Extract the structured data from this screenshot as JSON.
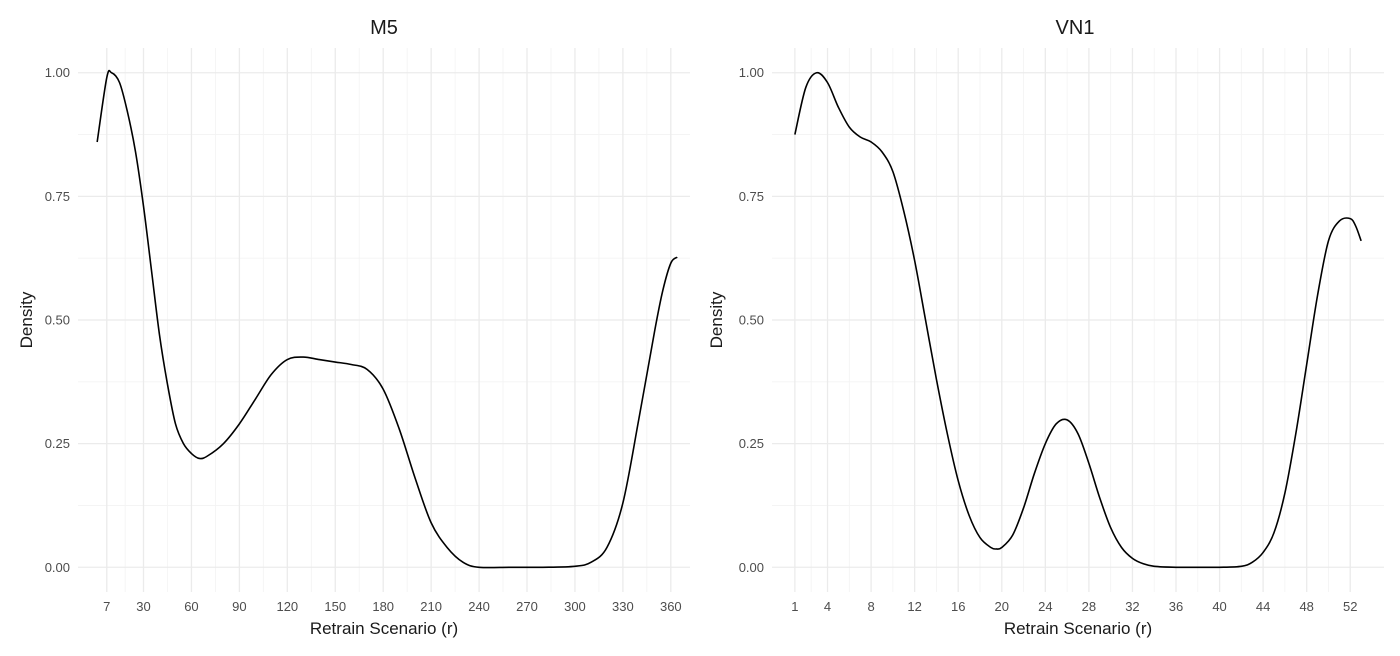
{
  "chart_data": [
    {
      "type": "line",
      "title": "M5",
      "xlabel": "Retrain Scenario (r)",
      "ylabel": "Density",
      "xlim": [
        -11,
        372
      ],
      "ylim": [
        -0.05,
        1.05
      ],
      "x_ticks": [
        7,
        30,
        60,
        90,
        120,
        150,
        180,
        210,
        240,
        270,
        300,
        330,
        360
      ],
      "y_ticks": [
        0.0,
        0.25,
        0.5,
        0.75,
        1.0
      ],
      "y_tick_labels": [
        "0.00",
        "0.25",
        "0.50",
        "0.75",
        "1.00"
      ],
      "grid": true,
      "series": [
        {
          "x": [
            1,
            7,
            10,
            15,
            20,
            25,
            30,
            35,
            40,
            45,
            50,
            55,
            60,
            65,
            70,
            80,
            90,
            100,
            110,
            120,
            130,
            140,
            150,
            160,
            170,
            180,
            190,
            200,
            210,
            220,
            230,
            240,
            260,
            280,
            300,
            310,
            320,
            330,
            340,
            350,
            355,
            360,
            364
          ],
          "y": [
            0.86,
            0.99,
            1.0,
            0.98,
            0.92,
            0.84,
            0.73,
            0.6,
            0.47,
            0.37,
            0.29,
            0.25,
            0.23,
            0.22,
            0.225,
            0.25,
            0.29,
            0.34,
            0.39,
            0.42,
            0.425,
            0.42,
            0.415,
            0.41,
            0.4,
            0.36,
            0.28,
            0.18,
            0.09,
            0.04,
            0.01,
            0.0,
            0.0,
            0.0,
            0.002,
            0.01,
            0.04,
            0.13,
            0.3,
            0.48,
            0.56,
            0.615,
            0.627
          ]
        }
      ]
    },
    {
      "type": "line",
      "title": "VN1",
      "xlabel": "Retrain Scenario (r)",
      "ylabel": "Density",
      "xlim": [
        -1.1,
        55.1
      ],
      "ylim": [
        -0.05,
        1.05
      ],
      "x_ticks": [
        1,
        4,
        8,
        12,
        16,
        20,
        24,
        28,
        32,
        36,
        40,
        44,
        48,
        52
      ],
      "y_ticks": [
        0.0,
        0.25,
        0.5,
        0.75,
        1.0
      ],
      "y_tick_labels": [
        "0.00",
        "0.25",
        "0.50",
        "0.75",
        "1.00"
      ],
      "grid": true,
      "series": [
        {
          "x": [
            1,
            2,
            3,
            4,
            5,
            6,
            7,
            8,
            9,
            10,
            11,
            12,
            13,
            14,
            15,
            16,
            17,
            18,
            19,
            19.5,
            20,
            21,
            22,
            23,
            24,
            25,
            26,
            27,
            28,
            29,
            30,
            31,
            32,
            33,
            34,
            36,
            38,
            40,
            42,
            43,
            44,
            45,
            46,
            47,
            48,
            49,
            50,
            51,
            52,
            52.5,
            53
          ],
          "y": [
            0.875,
            0.97,
            1.0,
            0.98,
            0.93,
            0.89,
            0.87,
            0.86,
            0.84,
            0.8,
            0.72,
            0.62,
            0.5,
            0.38,
            0.27,
            0.175,
            0.105,
            0.06,
            0.04,
            0.037,
            0.04,
            0.065,
            0.12,
            0.19,
            0.25,
            0.29,
            0.298,
            0.27,
            0.21,
            0.14,
            0.08,
            0.04,
            0.018,
            0.007,
            0.002,
            0.0,
            0.0,
            0.0,
            0.002,
            0.01,
            0.03,
            0.07,
            0.15,
            0.27,
            0.41,
            0.55,
            0.66,
            0.7,
            0.705,
            0.69,
            0.66
          ]
        }
      ]
    }
  ]
}
